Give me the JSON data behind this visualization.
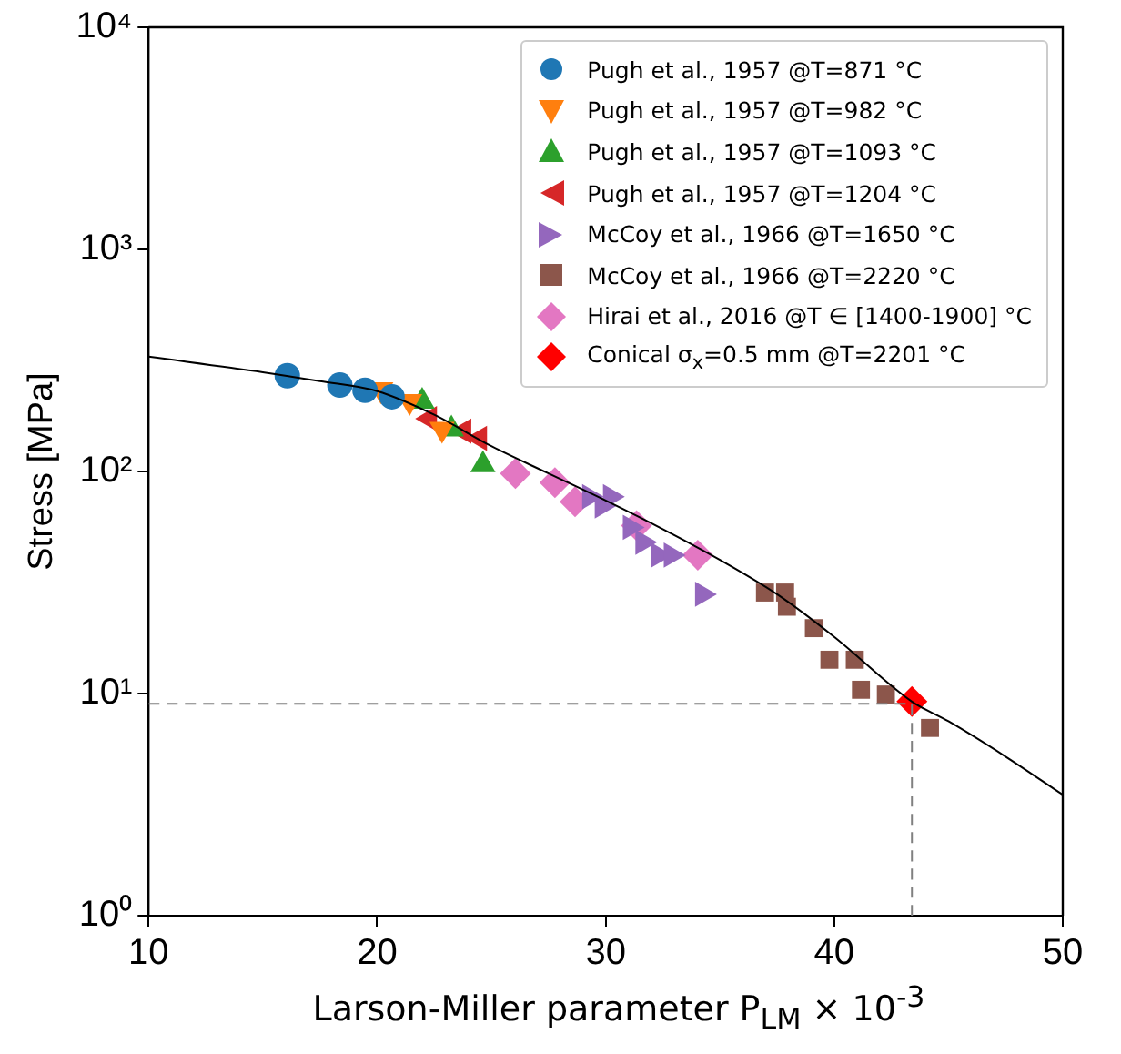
{
  "chart_data": {
    "type": "scatter",
    "xlabel": "Larson-Miller parameter P$_{LM}$ × 10$^{-3}$",
    "ylabel": "Stress [MPa]",
    "log": "y",
    "xlim": [
      10,
      50
    ],
    "ylim": [
      1,
      10000
    ],
    "xticks": [
      10,
      20,
      30,
      40,
      50
    ],
    "yticks": [
      {
        "value": 1,
        "label": "10⁰"
      },
      {
        "value": 10,
        "label": "10¹"
      },
      {
        "value": 100,
        "label": "10²"
      },
      {
        "value": 1000,
        "label": "10³"
      },
      {
        "value": 10000,
        "label": "10⁴"
      }
    ],
    "legend": "top right",
    "grid": false,
    "series": [
      {
        "type": "line",
        "color": "#000000",
        "marker": "none",
        "x": [
          10,
          15,
          17.5,
          20,
          22.5,
          25,
          27.5,
          30,
          32.5,
          35,
          37.5,
          40,
          43.4,
          45,
          47.5,
          50
        ],
        "values": [
          329,
          280,
          255,
          230,
          180,
          130,
          98,
          74,
          55,
          40,
          28,
          18,
          9.2,
          7.5,
          5.2,
          3.5
        ]
      },
      {
        "type": "line",
        "color": "#808080",
        "marker": "none",
        "line_style": "dashed",
        "x": [
          10,
          43.4,
          43.4
        ],
        "values": [
          9,
          9,
          1
        ]
      },
      {
        "name": "Pugh et al., 1957 @T=871 °C",
        "color": "#1f77b4",
        "marker": "circle",
        "x": [
          16.07,
          18.37,
          19.47,
          20.65
        ],
        "values": [
          270,
          245,
          232,
          217
        ]
      },
      {
        "name": "Pugh et al., 1957 @T=982 °C",
        "color": "#ff7f0e",
        "marker": "triangle-down",
        "x": [
          20.16,
          21.42,
          22.84
        ],
        "values": [
          234,
          207,
          155
        ]
      },
      {
        "name": "Pugh et al., 1957 @T=1093 °C",
        "color": "#2ca02c",
        "marker": "triangle",
        "x": [
          21.97,
          23.25,
          24.63
        ],
        "values": [
          207,
          155,
          107
        ]
      },
      {
        "name": "Pugh et al., 1957 @T=1204 °C",
        "color": "#d62728",
        "marker": "triangle-left",
        "x": [
          22.3,
          23.8,
          24.49
        ],
        "values": [
          173,
          152,
          141
        ]
      },
      {
        "name": "McCoy et al., 1966 @T=1650 °C",
        "color": "#9467bd",
        "marker": "triangle-right",
        "x": [
          29.29,
          30.2,
          29.84,
          31.07,
          31.62,
          32.3,
          32.86,
          34.23
        ],
        "values": [
          77,
          77,
          70,
          56,
          48,
          42,
          42,
          28
        ]
      },
      {
        "name": "McCoy et al., 1966 @T=2220 °C",
        "color": "#8c564b",
        "marker": "square",
        "x": [
          36.97,
          37.85,
          37.93,
          39.11,
          39.79,
          40.9,
          41.17,
          42.26,
          44.19
        ],
        "values": [
          28.5,
          28.5,
          24.6,
          19.7,
          14.2,
          14.2,
          10.4,
          9.9,
          7.0
        ]
      },
      {
        "name": "Hirai et al., 2016 @T ∈ [1400-1900] °C",
        "color": "#e377c2",
        "marker": "diamond",
        "x": [
          26.05,
          27.78,
          28.66,
          31.35,
          34.03
        ],
        "values": [
          98,
          89,
          73,
          57,
          42
        ]
      },
      {
        "name": "Conical σ$_{x}$=0.5 mm @T=2201 °C",
        "color": "#ff0000",
        "marker": "diamond",
        "x": [
          43.4
        ],
        "values": [
          9.2
        ]
      }
    ]
  }
}
